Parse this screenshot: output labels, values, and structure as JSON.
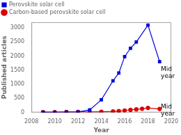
{
  "chart_data": {
    "type": "line",
    "xlabel": "Year",
    "ylabel": "Published articles",
    "series": [
      {
        "name": "Perovskite solar cell",
        "color": "#0000dd",
        "marker": "square",
        "x": [
          2009,
          2010,
          2011,
          2012,
          2013,
          2014,
          2015,
          2015.5,
          2016,
          2016.5,
          2017,
          2018,
          2019
        ],
        "values": [
          5,
          8,
          12,
          18,
          90,
          450,
          1120,
          1400,
          1980,
          2280,
          2500,
          3100,
          1800
        ]
      },
      {
        "name": "Carbon-based perovskite solar cell",
        "color": "#dd0000",
        "marker": "circle",
        "x": [
          2009,
          2010,
          2011,
          2012,
          2013,
          2014,
          2015,
          2015.5,
          2016,
          2016.5,
          2017,
          2017.5,
          2018,
          2019
        ],
        "values": [
          12,
          15,
          18,
          20,
          18,
          22,
          35,
          50,
          70,
          90,
          110,
          130,
          160,
          125
        ]
      }
    ],
    "annotations": [
      {
        "text": "Mid\nyear",
        "x": 2019.05,
        "y": 1650
      },
      {
        "text": "Mid\nyear",
        "x": 2019.05,
        "y": 300
      }
    ],
    "xlim": [
      2008,
      2020
    ],
    "xticks": [
      2008,
      2010,
      2012,
      2014,
      2016,
      2018,
      2020
    ],
    "ylim": [
      0,
      3200
    ],
    "yticks": [
      0,
      500,
      1000,
      1500,
      2000,
      2500,
      3000
    ],
    "legend": "upper left",
    "grid": false
  }
}
